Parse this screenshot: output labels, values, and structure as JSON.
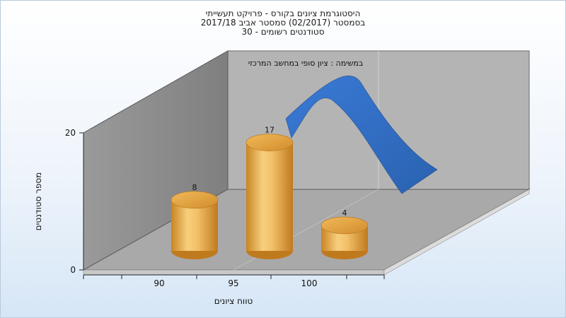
{
  "header": {
    "title_lines": [
      "היסטוגרמת ציונים בקורס - פרויקט תעשייתי",
      "בסמסטר  (02/2017)  סמסטר אביב 2017/18",
      "סטודנטים רשומים - 30"
    ]
  },
  "chart_data": {
    "type": "bar",
    "title": "במשימה : ציון סופי במחשב המרכזי",
    "xlabel": "טווח ציונים",
    "ylabel": "מספר סטודנטים",
    "categories": [
      "90",
      "95",
      "100"
    ],
    "values": [
      8,
      17,
      4
    ],
    "ylim": [
      0,
      20
    ],
    "yticks": [
      0,
      20
    ],
    "series_color": "#e5a545",
    "curve_color": "#2f6ebf",
    "grid": false,
    "legend": "none"
  }
}
